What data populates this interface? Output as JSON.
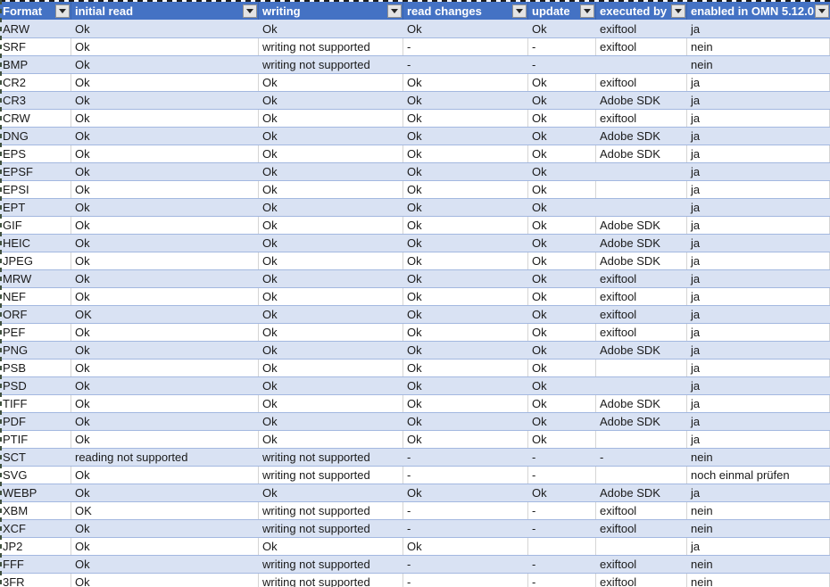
{
  "colors": {
    "header_bg": "#4472C4",
    "header_text": "#FFFFFF",
    "band_bg": "#D9E2F3",
    "row_border": "#A3B8E0",
    "gridline": "#D5D5D5",
    "text": "#1A1A1A"
  },
  "icons": {
    "filter_dropdown": "filter-dropdown-arrow"
  },
  "table": {
    "columns": [
      {
        "id": "format",
        "label": "Format"
      },
      {
        "id": "initial-read",
        "label": "initial read"
      },
      {
        "id": "writing",
        "label": "writing"
      },
      {
        "id": "read-changes",
        "label": "read changes"
      },
      {
        "id": "update",
        "label": "update"
      },
      {
        "id": "executed-by",
        "label": "executed by"
      },
      {
        "id": "enabled",
        "label": "enabled in OMN 5.12.0"
      }
    ],
    "rows": [
      [
        "ARW",
        "Ok",
        "Ok",
        "Ok",
        "Ok",
        "exiftool",
        "ja"
      ],
      [
        "SRF",
        "Ok",
        "writing not supported",
        "-",
        "-",
        "exiftool",
        "nein"
      ],
      [
        "BMP",
        "Ok",
        "writing not supported",
        "-",
        "-",
        "",
        "nein"
      ],
      [
        "CR2",
        "Ok",
        "Ok",
        "Ok",
        "Ok",
        "exiftool",
        "ja"
      ],
      [
        "CR3",
        "Ok",
        "Ok",
        "Ok",
        "Ok",
        "Adobe SDK",
        "ja"
      ],
      [
        "CRW",
        "Ok",
        "Ok",
        "Ok",
        "Ok",
        "exiftool",
        "ja"
      ],
      [
        "DNG",
        "Ok",
        "Ok",
        "Ok",
        "Ok",
        "Adobe SDK",
        "ja"
      ],
      [
        "EPS",
        "Ok",
        "Ok",
        "Ok",
        "Ok",
        "Adobe SDK",
        "ja"
      ],
      [
        "EPSF",
        "Ok",
        "Ok",
        "Ok",
        "Ok",
        "",
        "ja"
      ],
      [
        "EPSI",
        "Ok",
        "Ok",
        "Ok",
        "Ok",
        "",
        "ja"
      ],
      [
        "EPT",
        "Ok",
        "Ok",
        "Ok",
        "Ok",
        "",
        "ja"
      ],
      [
        "GIF",
        "Ok",
        "Ok",
        "Ok",
        "Ok",
        "Adobe SDK",
        "ja"
      ],
      [
        "HEIC",
        "Ok",
        "Ok",
        "Ok",
        "Ok",
        "Adobe SDK",
        "ja"
      ],
      [
        "JPEG",
        "Ok",
        "Ok",
        "Ok",
        "Ok",
        "Adobe SDK",
        "ja"
      ],
      [
        "MRW",
        "Ok",
        "Ok",
        "Ok",
        "Ok",
        "exiftool",
        "ja"
      ],
      [
        "NEF",
        "Ok",
        "Ok",
        "Ok",
        "Ok",
        "exiftool",
        "ja"
      ],
      [
        "ORF",
        "OK",
        "Ok",
        "Ok",
        "Ok",
        "exiftool",
        "ja"
      ],
      [
        "PEF",
        "Ok",
        "Ok",
        "Ok",
        "Ok",
        "exiftool",
        "ja"
      ],
      [
        "PNG",
        "Ok",
        "Ok",
        "Ok",
        "Ok",
        "Adobe SDK",
        "ja"
      ],
      [
        "PSB",
        "Ok",
        "Ok",
        "Ok",
        "Ok",
        "",
        "ja"
      ],
      [
        "PSD",
        "Ok",
        "Ok",
        "Ok",
        "Ok",
        "",
        "ja"
      ],
      [
        "TIFF",
        "Ok",
        "Ok",
        "Ok",
        "Ok",
        "Adobe SDK",
        "ja"
      ],
      [
        "PDF",
        "Ok",
        "Ok",
        "Ok",
        "Ok",
        "Adobe SDK",
        "ja"
      ],
      [
        "PTIF",
        "Ok",
        "Ok",
        "Ok",
        "Ok",
        "",
        "ja"
      ],
      [
        "SCT",
        "reading not supported",
        "writing not supported",
        "-",
        "-",
        "-",
        "nein"
      ],
      [
        "SVG",
        "Ok",
        "writing not supported",
        "-",
        "-",
        "",
        "noch einmal prüfen"
      ],
      [
        "WEBP",
        "Ok",
        "Ok",
        "Ok",
        "Ok",
        "Adobe SDK",
        "ja"
      ],
      [
        "XBM",
        "OK",
        "writing not supported",
        "-",
        "-",
        "exiftool",
        "nein"
      ],
      [
        "XCF",
        "Ok",
        "writing not supported",
        "-",
        "-",
        "exiftool",
        "nein"
      ],
      [
        "JP2",
        "Ok",
        "Ok",
        "Ok",
        "",
        "",
        "ja"
      ],
      [
        "FFF",
        "Ok",
        "writing not supported",
        "-",
        "-",
        "exiftool",
        "nein"
      ],
      [
        "3FR",
        "Ok",
        "writing not supported",
        "-",
        "-",
        "exiftool",
        "nein"
      ]
    ]
  }
}
